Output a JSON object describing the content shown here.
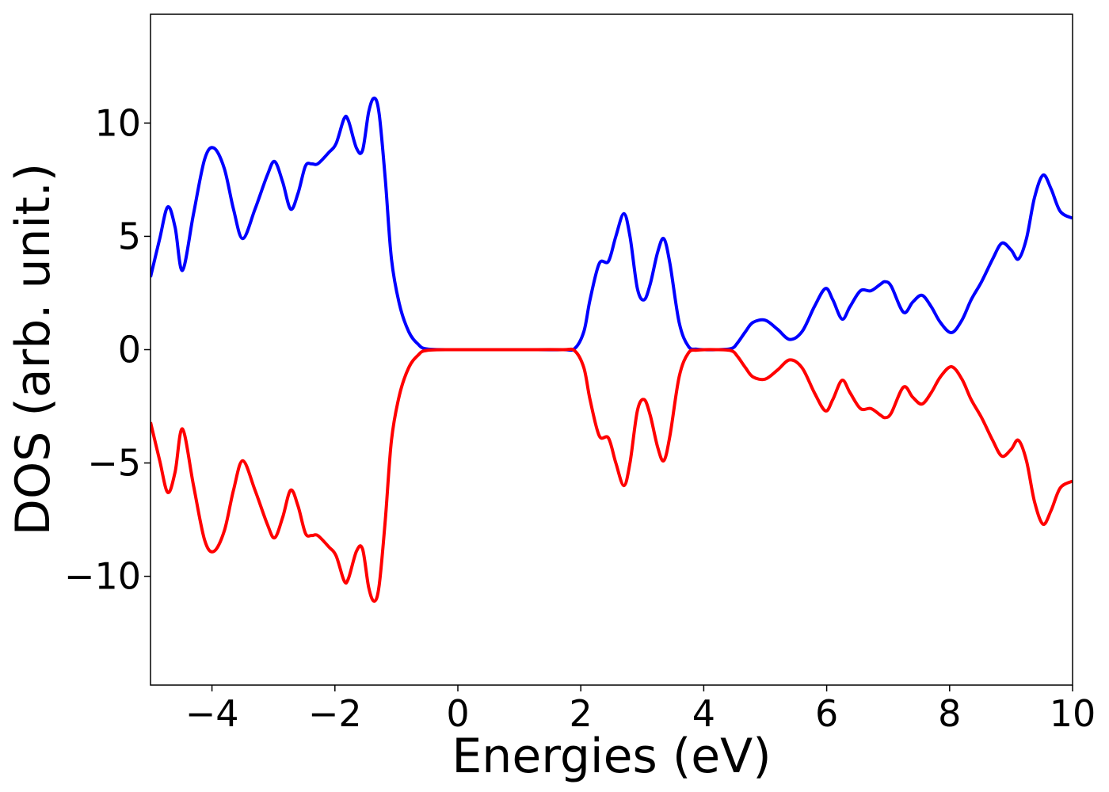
{
  "chart_data": {
    "type": "line",
    "title": "",
    "xlabel": "Energies (eV)",
    "ylabel": "DOS (arb. unit.)",
    "xlim": [
      -5,
      10
    ],
    "ylim": [
      -14.8,
      14.8
    ],
    "xticks": [
      -4,
      -2,
      0,
      2,
      4,
      6,
      8,
      10
    ],
    "xtick_labels": [
      "−4",
      "−2",
      "0",
      "2",
      "4",
      "6",
      "8",
      "10"
    ],
    "yticks": [
      -10,
      -5,
      0,
      5,
      10
    ],
    "ytick_labels": [
      "−10",
      "−5",
      "0",
      "5",
      "10"
    ],
    "grid": false,
    "legend": "none",
    "series": [
      {
        "color": "#0000ff",
        "points": [
          [
            -5.0,
            3.2
          ],
          [
            -4.85,
            4.9
          ],
          [
            -4.72,
            6.3
          ],
          [
            -4.6,
            5.4
          ],
          [
            -4.48,
            3.5
          ],
          [
            -4.3,
            6.0
          ],
          [
            -4.12,
            8.4
          ],
          [
            -3.97,
            8.9
          ],
          [
            -3.8,
            8.0
          ],
          [
            -3.65,
            6.2
          ],
          [
            -3.5,
            4.9
          ],
          [
            -3.3,
            6.2
          ],
          [
            -3.1,
            7.7
          ],
          [
            -2.98,
            8.3
          ],
          [
            -2.85,
            7.4
          ],
          [
            -2.72,
            6.2
          ],
          [
            -2.6,
            6.9
          ],
          [
            -2.48,
            8.1
          ],
          [
            -2.38,
            8.2
          ],
          [
            -2.28,
            8.2
          ],
          [
            -2.1,
            8.7
          ],
          [
            -1.98,
            9.1
          ],
          [
            -1.85,
            10.2
          ],
          [
            -1.78,
            10.1
          ],
          [
            -1.65,
            8.9
          ],
          [
            -1.55,
            8.8
          ],
          [
            -1.45,
            10.5
          ],
          [
            -1.36,
            11.1
          ],
          [
            -1.28,
            10.4
          ],
          [
            -1.18,
            7.5
          ],
          [
            -1.08,
            4.0
          ],
          [
            -0.95,
            2.0
          ],
          [
            -0.8,
            0.8
          ],
          [
            -0.65,
            0.25
          ],
          [
            -0.5,
            0.03
          ],
          [
            0,
            0
          ],
          [
            1.0,
            0
          ],
          [
            1.7,
            0
          ],
          [
            1.9,
            0.05
          ],
          [
            2.05,
            0.8
          ],
          [
            2.15,
            2.2
          ],
          [
            2.3,
            3.8
          ],
          [
            2.45,
            3.9
          ],
          [
            2.57,
            5.0
          ],
          [
            2.7,
            6.0
          ],
          [
            2.8,
            5.0
          ],
          [
            2.92,
            2.7
          ],
          [
            3.03,
            2.2
          ],
          [
            3.13,
            2.9
          ],
          [
            3.25,
            4.3
          ],
          [
            3.35,
            4.9
          ],
          [
            3.45,
            3.8
          ],
          [
            3.6,
            1.2
          ],
          [
            3.75,
            0.15
          ],
          [
            3.9,
            0.02
          ],
          [
            4.2,
            0
          ],
          [
            4.45,
            0.05
          ],
          [
            4.55,
            0.3
          ],
          [
            4.68,
            0.8
          ],
          [
            4.8,
            1.2
          ],
          [
            5.0,
            1.3
          ],
          [
            5.2,
            0.9
          ],
          [
            5.4,
            0.45
          ],
          [
            5.6,
            0.8
          ],
          [
            5.8,
            1.9
          ],
          [
            5.98,
            2.7
          ],
          [
            6.1,
            2.2
          ],
          [
            6.25,
            1.35
          ],
          [
            6.38,
            1.9
          ],
          [
            6.55,
            2.6
          ],
          [
            6.72,
            2.6
          ],
          [
            6.88,
            2.9
          ],
          [
            6.95,
            3.0
          ],
          [
            7.05,
            2.8
          ],
          [
            7.25,
            1.65
          ],
          [
            7.4,
            2.1
          ],
          [
            7.55,
            2.4
          ],
          [
            7.7,
            1.9
          ],
          [
            7.85,
            1.2
          ],
          [
            8.03,
            0.75
          ],
          [
            8.2,
            1.3
          ],
          [
            8.35,
            2.2
          ],
          [
            8.52,
            3.0
          ],
          [
            8.7,
            4.0
          ],
          [
            8.85,
            4.7
          ],
          [
            9.0,
            4.4
          ],
          [
            9.12,
            4.0
          ],
          [
            9.25,
            4.9
          ],
          [
            9.38,
            6.7
          ],
          [
            9.52,
            7.7
          ],
          [
            9.65,
            7.1
          ],
          [
            9.8,
            6.1
          ],
          [
            10.0,
            5.8
          ]
        ]
      },
      {
        "color": "#ff0000",
        "points": [
          [
            -5.0,
            -3.2
          ],
          [
            -4.85,
            -4.9
          ],
          [
            -4.72,
            -6.3
          ],
          [
            -4.6,
            -5.4
          ],
          [
            -4.48,
            -3.5
          ],
          [
            -4.3,
            -6.0
          ],
          [
            -4.12,
            -8.4
          ],
          [
            -3.97,
            -8.9
          ],
          [
            -3.8,
            -8.0
          ],
          [
            -3.65,
            -6.2
          ],
          [
            -3.5,
            -4.9
          ],
          [
            -3.3,
            -6.2
          ],
          [
            -3.1,
            -7.7
          ],
          [
            -2.98,
            -8.3
          ],
          [
            -2.85,
            -7.4
          ],
          [
            -2.72,
            -6.2
          ],
          [
            -2.6,
            -6.9
          ],
          [
            -2.48,
            -8.1
          ],
          [
            -2.38,
            -8.2
          ],
          [
            -2.28,
            -8.2
          ],
          [
            -2.1,
            -8.7
          ],
          [
            -1.98,
            -9.1
          ],
          [
            -1.85,
            -10.2
          ],
          [
            -1.78,
            -10.1
          ],
          [
            -1.65,
            -8.9
          ],
          [
            -1.55,
            -8.8
          ],
          [
            -1.45,
            -10.5
          ],
          [
            -1.36,
            -11.1
          ],
          [
            -1.28,
            -10.4
          ],
          [
            -1.18,
            -7.5
          ],
          [
            -1.08,
            -4.0
          ],
          [
            -0.95,
            -2.0
          ],
          [
            -0.8,
            -0.8
          ],
          [
            -0.65,
            -0.25
          ],
          [
            -0.5,
            -0.03
          ],
          [
            0,
            0
          ],
          [
            1.0,
            0
          ],
          [
            1.7,
            0
          ],
          [
            1.9,
            -0.05
          ],
          [
            2.05,
            -0.8
          ],
          [
            2.15,
            -2.2
          ],
          [
            2.3,
            -3.8
          ],
          [
            2.45,
            -3.9
          ],
          [
            2.57,
            -5.0
          ],
          [
            2.7,
            -6.0
          ],
          [
            2.8,
            -5.0
          ],
          [
            2.92,
            -2.7
          ],
          [
            3.03,
            -2.2
          ],
          [
            3.13,
            -2.9
          ],
          [
            3.25,
            -4.3
          ],
          [
            3.35,
            -4.9
          ],
          [
            3.45,
            -3.8
          ],
          [
            3.6,
            -1.2
          ],
          [
            3.75,
            -0.15
          ],
          [
            3.9,
            -0.02
          ],
          [
            4.2,
            0
          ],
          [
            4.45,
            -0.05
          ],
          [
            4.55,
            -0.3
          ],
          [
            4.68,
            -0.8
          ],
          [
            4.8,
            -1.2
          ],
          [
            5.0,
            -1.3
          ],
          [
            5.2,
            -0.9
          ],
          [
            5.4,
            -0.45
          ],
          [
            5.6,
            -0.8
          ],
          [
            5.8,
            -1.9
          ],
          [
            5.98,
            -2.7
          ],
          [
            6.1,
            -2.2
          ],
          [
            6.25,
            -1.35
          ],
          [
            6.38,
            -1.9
          ],
          [
            6.55,
            -2.6
          ],
          [
            6.72,
            -2.6
          ],
          [
            6.88,
            -2.9
          ],
          [
            6.95,
            -3.0
          ],
          [
            7.05,
            -2.8
          ],
          [
            7.25,
            -1.65
          ],
          [
            7.4,
            -2.1
          ],
          [
            7.55,
            -2.4
          ],
          [
            7.7,
            -1.9
          ],
          [
            7.85,
            -1.2
          ],
          [
            8.03,
            -0.75
          ],
          [
            8.2,
            -1.3
          ],
          [
            8.35,
            -2.2
          ],
          [
            8.52,
            -3.0
          ],
          [
            8.7,
            -4.0
          ],
          [
            8.85,
            -4.7
          ],
          [
            9.0,
            -4.4
          ],
          [
            9.12,
            -4.0
          ],
          [
            9.25,
            -4.9
          ],
          [
            9.38,
            -6.7
          ],
          [
            9.52,
            -7.7
          ],
          [
            9.65,
            -7.1
          ],
          [
            9.8,
            -6.1
          ],
          [
            10.0,
            -5.8
          ]
        ]
      }
    ]
  }
}
